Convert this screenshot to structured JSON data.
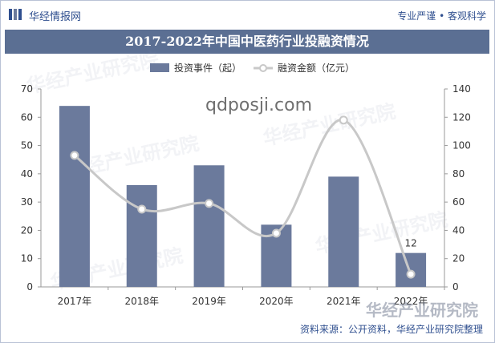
{
  "header": {
    "brand": "华经情报网",
    "tagline": "专业严谨 • 客观科学"
  },
  "watermarks": {
    "corner": "华经产业研究院",
    "overlay": "qdposji.com"
  },
  "source": "资料来源：公开资料，华经产业研究院整理",
  "chart_data": {
    "type": "bar",
    "title": "2017-2022年中国中医药行业投融资情况",
    "categories": [
      "2017年",
      "2018年",
      "2019年",
      "2020年",
      "2021年",
      "2022年"
    ],
    "series": [
      {
        "name": "投资事件（起）",
        "kind": "bar",
        "axis": "left",
        "values": [
          64,
          36,
          43,
          22,
          39,
          12
        ],
        "color": "#6b7a9c"
      },
      {
        "name": "融资金额（亿元）",
        "kind": "line",
        "axis": "right",
        "values": [
          93,
          55,
          59,
          38,
          118,
          9
        ],
        "color": "#c8c8c8"
      }
    ],
    "data_labels": [
      {
        "series": 0,
        "index": 5,
        "text": "12"
      }
    ],
    "ylim_left": [
      0,
      70
    ],
    "yticks_left": [
      0,
      10,
      20,
      30,
      40,
      50,
      60,
      70
    ],
    "ylim_right": [
      0,
      140
    ],
    "yticks_right": [
      0,
      20,
      40,
      60,
      80,
      100,
      120,
      140
    ],
    "legend_position": "top-center",
    "grid": false
  }
}
